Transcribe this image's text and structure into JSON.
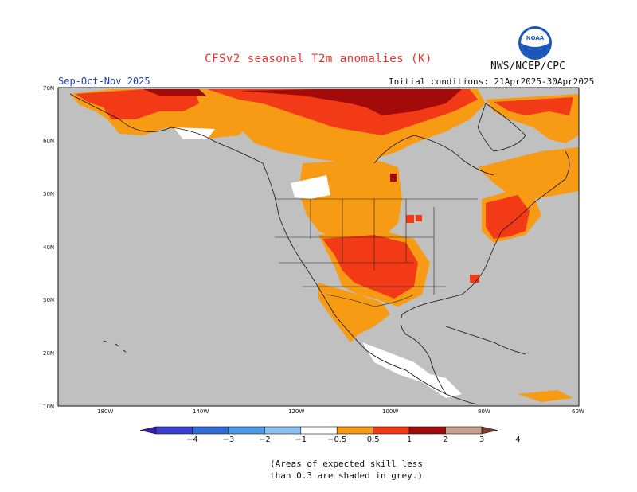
{
  "title": "CFSv2 seasonal T2m anomalies (K)",
  "agency": "NWS/NCEP/CPC",
  "season": "Sep-Oct-Nov 2025",
  "initial_conditions": "Initial conditions: 21Apr2025-30Apr2025",
  "logo": {
    "text": "NOAA",
    "icon": "noaa-logo"
  },
  "lat_labels": [
    "70N",
    "60N",
    "50N",
    "40N",
    "30N",
    "20N",
    "10N"
  ],
  "lon_labels": [
    "180W",
    "140W",
    "120W",
    "100W",
    "80W",
    "60W"
  ],
  "colorbar": {
    "labels": [
      "−4",
      "−3",
      "−2",
      "−1",
      "−0.5",
      "0.5",
      "1",
      "2",
      "3",
      "4"
    ],
    "colors": [
      "#3b1ea6",
      "#3c3cd2",
      "#2f6ed9",
      "#4f9ae8",
      "#8cc2f3",
      "#ffffff",
      "#f79a14",
      "#f23a17",
      "#a30b0b",
      "#c99f8f",
      "#7b3b2b"
    ]
  },
  "note": [
    "(Areas of expected skill less",
    "than 0.3 are shaded in grey.)"
  ],
  "colors": {
    "title": "#e8312a",
    "season": "#1f3fbf",
    "land_grey": "#c0c0c0",
    "orange": "#f79a14",
    "red": "#f23a17",
    "darkred": "#a30b0b",
    "white": "#ffffff"
  }
}
